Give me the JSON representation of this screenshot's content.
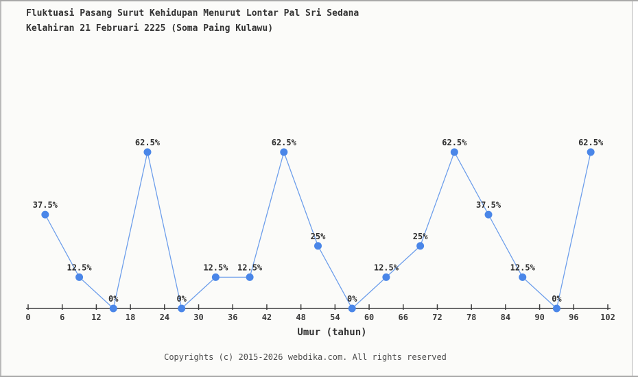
{
  "header": {
    "title_line1": "Fluktuasi Pasang Surut Kehidupan Menurut Lontar Pal Sri Sedana",
    "title_line2": "Kelahiran 21 Februari 2225 (Soma Paing Kulawu)"
  },
  "chart_data": {
    "type": "line",
    "x": [
      3,
      9,
      15,
      21,
      27,
      33,
      39,
      45,
      51,
      57,
      63,
      69,
      75,
      81,
      87,
      93,
      99
    ],
    "values": [
      37.5,
      12.5,
      0,
      62.5,
      0,
      12.5,
      12.5,
      62.5,
      25,
      0,
      12.5,
      25,
      62.5,
      37.5,
      12.5,
      0,
      62.5
    ],
    "point_labels": [
      "37.5%",
      "12.5%",
      "0%",
      "62.5%",
      "0%",
      "12.5%",
      "12.5%",
      "62.5%",
      "25%",
      "0%",
      "12.5%",
      "25%",
      "62.5%",
      "37.5%",
      "12.5%",
      "0%",
      "62.5%"
    ],
    "x_ticks": [
      0,
      6,
      12,
      18,
      24,
      30,
      36,
      42,
      48,
      54,
      60,
      66,
      72,
      78,
      84,
      90,
      96,
      102
    ],
    "xlabel": "Umur (tahun)",
    "xlim": [
      0,
      102
    ],
    "ylim": [
      0,
      100
    ],
    "grid": false,
    "legend": null,
    "colors": {
      "marker": "#4a86e8",
      "line": "#6d9eeb",
      "axis": "#3d3d3d",
      "label": "#2e2e2e",
      "background": "#fbfbf9"
    }
  },
  "footer": {
    "copyright": "Copyrights (c) 2015-2026 webdika.com. All rights reserved"
  }
}
